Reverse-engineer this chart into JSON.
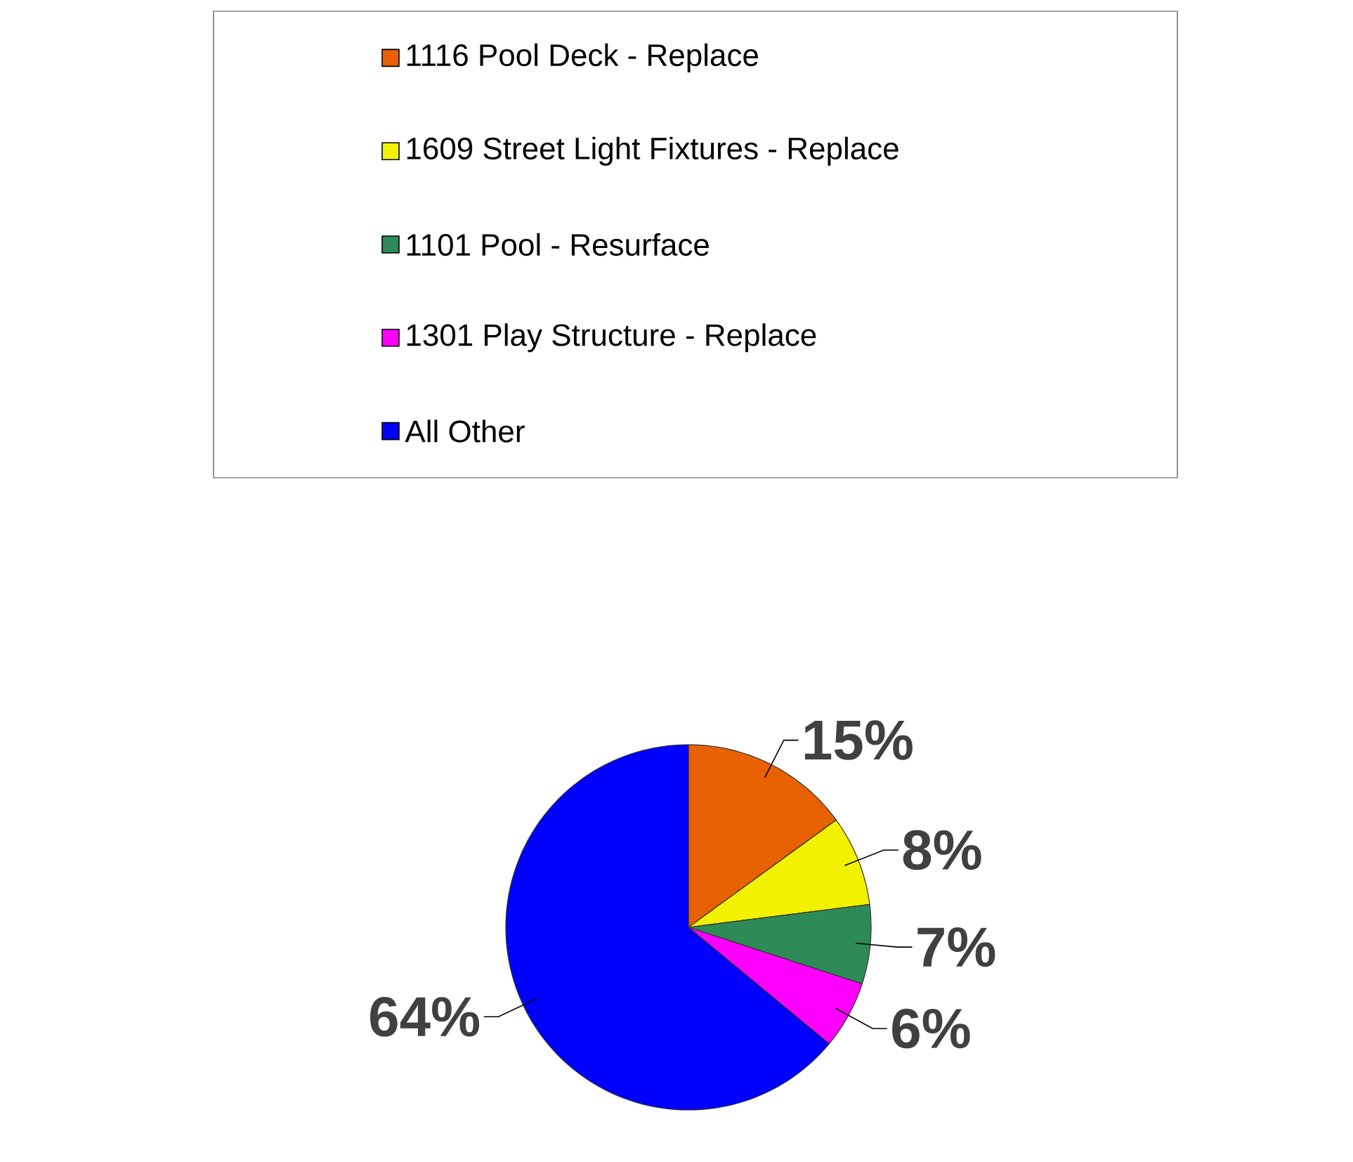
{
  "chart_data": {
    "type": "pie",
    "categories": [
      "1116 Pool Deck - Replace",
      "1609 Street Light Fixtures - Replace",
      "1101 Pool - Resurface",
      "1301 Play Structure - Replace",
      "All Other"
    ],
    "values": [
      15,
      8,
      7,
      6,
      64
    ],
    "colors": [
      "#e86100",
      "#f2f200",
      "#2e8b57",
      "#ff00ff",
      "#0000ff"
    ],
    "value_labels": [
      "15%",
      "8%",
      "7%",
      "6%",
      "64%"
    ],
    "legend": "top"
  }
}
